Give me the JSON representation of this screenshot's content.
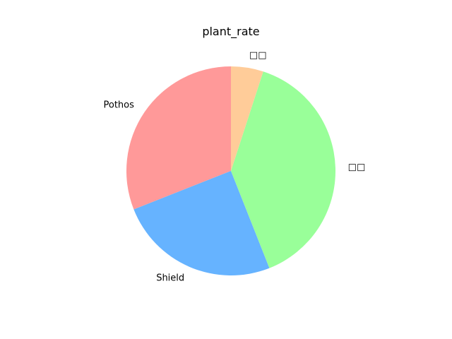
{
  "chart_data": {
    "type": "pie",
    "title": "plant_rate",
    "slices": [
      {
        "label": "Pothos",
        "value": 31,
        "color": "#ff9999"
      },
      {
        "label": "Shield",
        "value": 25,
        "color": "#66b3ff"
      },
      {
        "label": "□□",
        "value": 39,
        "color": "#99ff99"
      },
      {
        "label": "□□",
        "value": 5,
        "color": "#ffcc99"
      }
    ],
    "start_angle_deg": 90,
    "direction": "counterclockwise"
  }
}
